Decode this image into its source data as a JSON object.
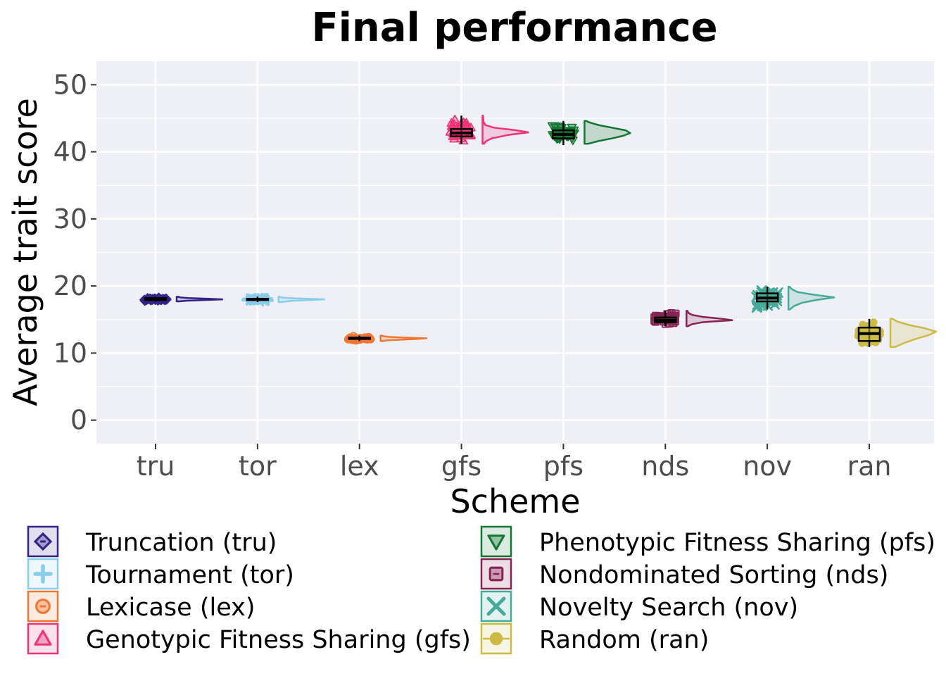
{
  "chart_data": {
    "type": "raincloud",
    "title": "Final performance",
    "xlabel": "Scheme",
    "ylabel": "Average trait score",
    "ylim": [
      -3.5,
      53.5
    ],
    "yticks": [
      0,
      10,
      20,
      30,
      40,
      50
    ],
    "grid": true,
    "legend_position": "bottom",
    "categories": [
      "tru",
      "tor",
      "lex",
      "gfs",
      "pfs",
      "nds",
      "nov",
      "ran"
    ],
    "series": [
      {
        "code": "tru",
        "name": "Truncation (tru)",
        "color": "#332288",
        "marker": "diamond",
        "median": 18.0,
        "q1": 17.9,
        "q3": 18.2,
        "min": 17.7,
        "max": 18.4,
        "violin": [
          [
            17.7,
            0.05
          ],
          [
            17.8,
            0.2
          ],
          [
            17.9,
            0.6
          ],
          [
            18.0,
            1.0
          ],
          [
            18.1,
            0.7
          ],
          [
            18.2,
            0.25
          ],
          [
            18.3,
            0.08
          ],
          [
            18.4,
            0.03
          ]
        ]
      },
      {
        "code": "tor",
        "name": "Tournament (tor)",
        "color": "#88ccee",
        "marker": "plus",
        "median": 18.0,
        "q1": 17.9,
        "q3": 18.1,
        "min": 17.6,
        "max": 18.4,
        "violin": [
          [
            17.6,
            0.05
          ],
          [
            17.8,
            0.3
          ],
          [
            17.9,
            0.7
          ],
          [
            18.0,
            1.0
          ],
          [
            18.1,
            0.6
          ],
          [
            18.2,
            0.2
          ],
          [
            18.3,
            0.06
          ],
          [
            18.4,
            0.02
          ]
        ]
      },
      {
        "code": "lex",
        "name": "Lexicase (lex)",
        "color": "#ee7733",
        "marker": "circle-minus",
        "median": 12.2,
        "q1": 12.1,
        "q3": 12.3,
        "min": 11.8,
        "max": 12.6,
        "violin": [
          [
            11.8,
            0.04
          ],
          [
            11.9,
            0.15
          ],
          [
            12.0,
            0.45
          ],
          [
            12.1,
            0.8
          ],
          [
            12.2,
            1.0
          ],
          [
            12.3,
            0.55
          ],
          [
            12.4,
            0.2
          ],
          [
            12.5,
            0.08
          ],
          [
            12.6,
            0.02
          ]
        ]
      },
      {
        "code": "gfs",
        "name": "Genotypic Fitness Sharing (gfs)",
        "color": "#ee3377",
        "marker": "triangle",
        "median": 42.8,
        "q1": 42.3,
        "q3": 43.4,
        "min": 41.2,
        "max": 45.4,
        "violin": [
          [
            41.2,
            0.03
          ],
          [
            41.6,
            0.08
          ],
          [
            42.0,
            0.2
          ],
          [
            42.5,
            0.55
          ],
          [
            42.9,
            1.0
          ],
          [
            43.2,
            0.75
          ],
          [
            43.6,
            0.25
          ],
          [
            44.0,
            0.06
          ],
          [
            44.5,
            0.02
          ],
          [
            45.4,
            0.01
          ]
        ]
      },
      {
        "code": "pfs",
        "name": "Phenotypic Fitness Sharing (pfs)",
        "color": "#117733",
        "marker": "triangle-down",
        "median": 42.6,
        "q1": 42.0,
        "q3": 43.2,
        "min": 41.0,
        "max": 44.6,
        "violin": [
          [
            41.2,
            0.08
          ],
          [
            41.6,
            0.3
          ],
          [
            42.0,
            0.6
          ],
          [
            42.4,
            0.85
          ],
          [
            42.8,
            1.0
          ],
          [
            43.2,
            0.9
          ],
          [
            43.6,
            0.6
          ],
          [
            44.0,
            0.3
          ],
          [
            44.4,
            0.1
          ],
          [
            44.6,
            0.04
          ]
        ]
      },
      {
        "code": "nds",
        "name": "Nondominated Sorting (nds)",
        "color": "#882255",
        "marker": "square-minus",
        "median": 14.9,
        "q1": 14.6,
        "q3": 15.3,
        "min": 14.0,
        "max": 16.3,
        "violin": [
          [
            14.0,
            0.03
          ],
          [
            14.3,
            0.12
          ],
          [
            14.6,
            0.35
          ],
          [
            14.9,
            1.0
          ],
          [
            15.1,
            0.8
          ],
          [
            15.4,
            0.35
          ],
          [
            15.7,
            0.12
          ],
          [
            16.0,
            0.04
          ],
          [
            16.3,
            0.02
          ]
        ]
      },
      {
        "code": "nov",
        "name": "Novelty Search (nov)",
        "color": "#44aa99",
        "marker": "cross",
        "median": 18.2,
        "q1": 17.7,
        "q3": 18.9,
        "min": 16.5,
        "max": 19.9,
        "violin": [
          [
            16.5,
            0.03
          ],
          [
            17.0,
            0.12
          ],
          [
            17.5,
            0.3
          ],
          [
            17.9,
            0.6
          ],
          [
            18.3,
            1.0
          ],
          [
            18.7,
            0.55
          ],
          [
            19.1,
            0.2
          ],
          [
            19.5,
            0.08
          ],
          [
            19.9,
            0.02
          ]
        ]
      },
      {
        "code": "ran",
        "name": "Random (ran)",
        "color": "#ccbb44",
        "marker": "dot-line",
        "median": 12.9,
        "q1": 11.8,
        "q3": 13.8,
        "min": 10.9,
        "max": 15.1,
        "violin": [
          [
            10.9,
            0.1
          ],
          [
            11.5,
            0.3
          ],
          [
            12.1,
            0.55
          ],
          [
            12.7,
            0.85
          ],
          [
            13.2,
            1.0
          ],
          [
            13.7,
            0.75
          ],
          [
            14.2,
            0.4
          ],
          [
            14.7,
            0.15
          ],
          [
            15.1,
            0.05
          ]
        ]
      }
    ]
  }
}
